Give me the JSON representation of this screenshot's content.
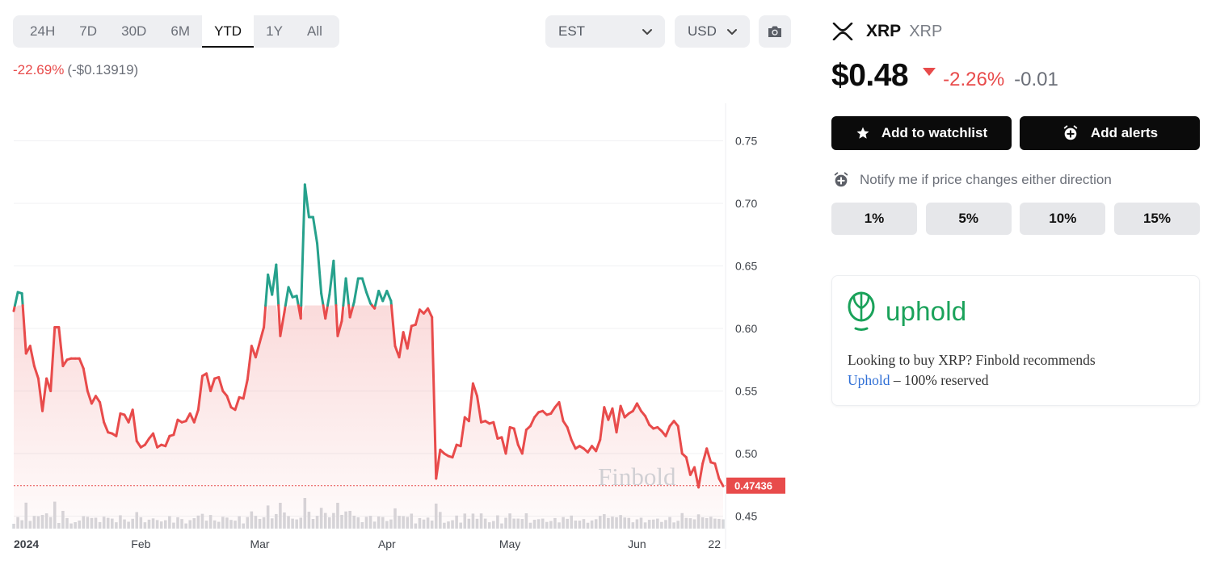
{
  "toolbar": {
    "ranges": [
      "24H",
      "7D",
      "30D",
      "6M",
      "YTD",
      "1Y",
      "All"
    ],
    "active_range": "YTD",
    "timezone": "EST",
    "currency": "USD"
  },
  "change": {
    "percent": "-22.69%",
    "absolute": "(-$0.13919)"
  },
  "asset": {
    "symbol": "XRP",
    "name": "XRP",
    "price": "$0.48",
    "change_percent": "-2.26%",
    "change_absolute": "-0.01"
  },
  "actions": {
    "watchlist_label": "Add to watchlist",
    "alerts_label": "Add alerts"
  },
  "notify": {
    "label": "Notify me if price changes either direction",
    "thresholds": [
      "1%",
      "5%",
      "10%",
      "15%"
    ]
  },
  "promo": {
    "brand": "uphold",
    "text_before": "Looking to buy XRP? Finbold recommends",
    "link": "Uphold",
    "text_after": " – 100% reserved"
  },
  "colors": {
    "up": "#26a18c",
    "down": "#e84b4b",
    "accent": "#1aa25a"
  },
  "chart_data": {
    "type": "line",
    "x_ticks": [
      "2024",
      "Feb",
      "Mar",
      "Apr",
      "May",
      "Jun",
      "22"
    ],
    "y_ticks": [
      0.45,
      0.5,
      0.55,
      0.6,
      0.65,
      0.7,
      0.75
    ],
    "ylim": [
      0.44,
      0.78
    ],
    "reference_value": 0.61839,
    "current_value": 0.47436,
    "current_label": "0.47436",
    "watermark": "Finbold",
    "x": [
      "2024-01-01",
      "2024-01-02",
      "2024-01-03",
      "2024-01-04",
      "2024-01-05",
      "2024-01-06",
      "2024-01-07",
      "2024-01-08",
      "2024-01-09",
      "2024-01-10",
      "2024-01-11",
      "2024-01-12",
      "2024-01-13",
      "2024-01-14",
      "2024-01-15",
      "2024-01-16",
      "2024-01-17",
      "2024-01-18",
      "2024-01-19",
      "2024-01-20",
      "2024-01-21",
      "2024-01-22",
      "2024-01-23",
      "2024-01-24",
      "2024-01-25",
      "2024-01-26",
      "2024-01-27",
      "2024-01-28",
      "2024-01-29",
      "2024-01-30",
      "2024-01-31",
      "2024-02-01",
      "2024-02-02",
      "2024-02-03",
      "2024-02-04",
      "2024-02-05",
      "2024-02-06",
      "2024-02-07",
      "2024-02-08",
      "2024-02-09",
      "2024-02-10",
      "2024-02-11",
      "2024-02-12",
      "2024-02-13",
      "2024-02-14",
      "2024-02-15",
      "2024-02-16",
      "2024-02-17",
      "2024-02-18",
      "2024-02-19",
      "2024-02-20",
      "2024-02-21",
      "2024-02-22",
      "2024-02-23",
      "2024-02-24",
      "2024-02-25",
      "2024-02-26",
      "2024-02-27",
      "2024-02-28",
      "2024-02-29",
      "2024-03-01",
      "2024-03-02",
      "2024-03-03",
      "2024-03-04",
      "2024-03-05",
      "2024-03-06",
      "2024-03-07",
      "2024-03-08",
      "2024-03-09",
      "2024-03-10",
      "2024-03-11",
      "2024-03-12",
      "2024-03-13",
      "2024-03-14",
      "2024-03-15",
      "2024-03-16",
      "2024-03-17",
      "2024-03-18",
      "2024-03-19",
      "2024-03-20",
      "2024-03-21",
      "2024-03-22",
      "2024-03-23",
      "2024-03-24",
      "2024-03-25",
      "2024-03-26",
      "2024-03-27",
      "2024-03-28",
      "2024-03-29",
      "2024-03-30",
      "2024-03-31",
      "2024-04-01",
      "2024-04-02",
      "2024-04-03",
      "2024-04-04",
      "2024-04-05",
      "2024-04-06",
      "2024-04-07",
      "2024-04-08",
      "2024-04-09",
      "2024-04-10",
      "2024-04-11",
      "2024-04-12",
      "2024-04-13",
      "2024-04-14",
      "2024-04-15",
      "2024-04-16",
      "2024-04-17",
      "2024-04-18",
      "2024-04-19",
      "2024-04-20",
      "2024-04-21",
      "2024-04-22",
      "2024-04-23",
      "2024-04-24",
      "2024-04-25",
      "2024-04-26",
      "2024-04-27",
      "2024-04-28",
      "2024-04-29",
      "2024-04-30",
      "2024-05-01",
      "2024-05-02",
      "2024-05-03",
      "2024-05-04",
      "2024-05-05",
      "2024-05-06",
      "2024-05-07",
      "2024-05-08",
      "2024-05-09",
      "2024-05-10",
      "2024-05-11",
      "2024-05-12",
      "2024-05-13",
      "2024-05-14",
      "2024-05-15",
      "2024-05-16",
      "2024-05-17",
      "2024-05-18",
      "2024-05-19",
      "2024-05-20",
      "2024-05-21",
      "2024-05-22",
      "2024-05-23",
      "2024-05-24",
      "2024-05-25",
      "2024-05-26",
      "2024-05-27",
      "2024-05-28",
      "2024-05-29",
      "2024-05-30",
      "2024-05-31",
      "2024-06-01",
      "2024-06-02",
      "2024-06-03",
      "2024-06-04",
      "2024-06-05",
      "2024-06-06",
      "2024-06-07",
      "2024-06-08",
      "2024-06-09",
      "2024-06-10",
      "2024-06-11",
      "2024-06-12",
      "2024-06-13",
      "2024-06-14",
      "2024-06-15",
      "2024-06-16",
      "2024-06-17",
      "2024-06-18",
      "2024-06-19",
      "2024-06-20",
      "2024-06-21",
      "2024-06-22"
    ],
    "y": [
      0.614,
      0.629,
      0.628,
      0.58,
      0.586,
      0.57,
      0.56,
      0.534,
      0.56,
      0.55,
      0.601,
      0.601,
      0.57,
      0.575,
      0.576,
      0.576,
      0.576,
      0.568,
      0.55,
      0.54,
      0.546,
      0.541,
      0.525,
      0.517,
      0.516,
      0.514,
      0.532,
      0.531,
      0.525,
      0.535,
      0.51,
      0.505,
      0.507,
      0.512,
      0.516,
      0.505,
      0.507,
      0.506,
      0.514,
      0.515,
      0.527,
      0.525,
      0.526,
      0.532,
      0.525,
      0.535,
      0.562,
      0.564,
      0.55,
      0.56,
      0.561,
      0.55,
      0.546,
      0.537,
      0.535,
      0.545,
      0.544,
      0.559,
      0.586,
      0.577,
      0.589,
      0.601,
      0.643,
      0.627,
      0.651,
      0.594,
      0.613,
      0.633,
      0.625,
      0.626,
      0.608,
      0.715,
      0.689,
      0.689,
      0.668,
      0.628,
      0.608,
      0.627,
      0.654,
      0.594,
      0.606,
      0.64,
      0.609,
      0.621,
      0.64,
      0.64,
      0.629,
      0.62,
      0.616,
      0.63,
      0.622,
      0.63,
      0.622,
      0.586,
      0.577,
      0.597,
      0.584,
      0.602,
      0.603,
      0.615,
      0.612,
      0.616,
      0.609,
      0.48,
      0.503,
      0.5,
      0.498,
      0.497,
      0.507,
      0.506,
      0.529,
      0.526,
      0.556,
      0.546,
      0.525,
      0.526,
      0.524,
      0.525,
      0.512,
      0.513,
      0.5,
      0.521,
      0.52,
      0.507,
      0.5,
      0.519,
      0.522,
      0.529,
      0.533,
      0.534,
      0.531,
      0.532,
      0.537,
      0.541,
      0.526,
      0.521,
      0.511,
      0.504,
      0.506,
      0.504,
      0.501,
      0.506,
      0.502,
      0.511,
      0.537,
      0.527,
      0.536,
      0.517,
      0.538,
      0.529,
      0.532,
      0.534,
      0.54,
      0.534,
      0.53,
      0.523,
      0.52,
      0.521,
      0.518,
      0.514,
      0.522,
      0.526,
      0.522,
      0.5,
      0.497,
      0.483,
      0.489,
      0.473,
      0.492,
      0.504,
      0.493,
      0.492,
      0.48,
      0.474
    ]
  }
}
